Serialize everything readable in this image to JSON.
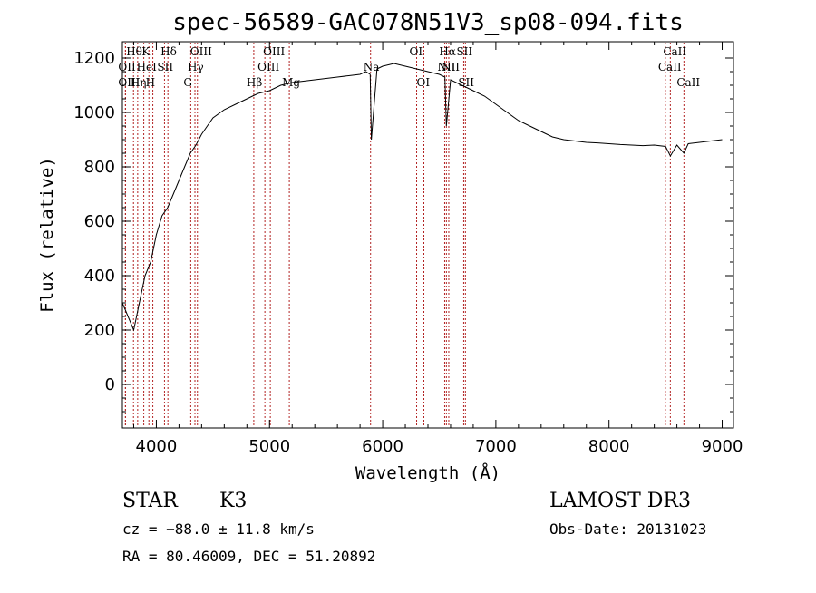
{
  "chart_data": {
    "type": "line",
    "title": "spec-56589-GAC078N51V3_sp08-094.fits",
    "xlabel": "Wavelength (Å)",
    "ylabel": "Flux (relative)",
    "xlim": [
      3700,
      9100
    ],
    "ylim": [
      -160,
      1260
    ],
    "x_ticks": [
      4000,
      5000,
      6000,
      7000,
      8000,
      9000
    ],
    "y_ticks": [
      0,
      200,
      400,
      600,
      800,
      1000,
      1200
    ],
    "series": [
      {
        "name": "flux",
        "x": [
          3700,
          3750,
          3800,
          3850,
          3900,
          3950,
          4000,
          4050,
          4100,
          4150,
          4200,
          4250,
          4300,
          4350,
          4400,
          4450,
          4500,
          4600,
          4700,
          4800,
          4850,
          4900,
          5000,
          5100,
          5200,
          5300,
          5400,
          5500,
          5600,
          5700,
          5800,
          5850,
          5890,
          5900,
          5950,
          6000,
          6100,
          6200,
          6300,
          6400,
          6500,
          6550,
          6563,
          6600,
          6700,
          6800,
          6900,
          7000,
          7100,
          7200,
          7300,
          7400,
          7500,
          7600,
          7700,
          7800,
          7900,
          8000,
          8100,
          8200,
          8300,
          8400,
          8500,
          8542,
          8600,
          8662,
          8700,
          8800,
          8900,
          9000
        ],
        "y": [
          300,
          250,
          200,
          300,
          400,
          450,
          550,
          620,
          650,
          700,
          750,
          800,
          850,
          880,
          920,
          950,
          980,
          1010,
          1030,
          1050,
          1060,
          1070,
          1080,
          1100,
          1110,
          1115,
          1120,
          1125,
          1130,
          1135,
          1140,
          1150,
          1140,
          900,
          1160,
          1170,
          1180,
          1170,
          1160,
          1150,
          1140,
          1130,
          950,
          1120,
          1100,
          1080,
          1060,
          1030,
          1000,
          970,
          950,
          930,
          910,
          900,
          895,
          890,
          888,
          885,
          882,
          880,
          878,
          880,
          875,
          840,
          880,
          850,
          885,
          890,
          895,
          900
        ]
      }
    ],
    "spectral_lines": [
      {
        "name": "Hθ",
        "wavelength": 3798,
        "row": 1
      },
      {
        "name": "OII",
        "wavelength": 3727,
        "row": 2
      },
      {
        "name": "OIII",
        "wavelength": 3727,
        "row": 3
      },
      {
        "name": "K",
        "wavelength": 3934,
        "row": 1
      },
      {
        "name": "HeI",
        "wavelength": 3889,
        "row": 2
      },
      {
        "name": "Hη",
        "wavelength": 3835,
        "row": 3
      },
      {
        "name": "Hδ",
        "wavelength": 4102,
        "row": 1
      },
      {
        "name": "SII",
        "wavelength": 4072,
        "row": 2
      },
      {
        "name": "H",
        "wavelength": 3969,
        "row": 3
      },
      {
        "name": "OIII",
        "wavelength": 4363,
        "row": 1
      },
      {
        "name": "Hγ",
        "wavelength": 4341,
        "row": 2
      },
      {
        "name": "G",
        "wavelength": 4304,
        "row": 3
      },
      {
        "name": "OIII",
        "wavelength": 5007,
        "row": 1
      },
      {
        "name": "OIII",
        "wavelength": 4959,
        "row": 2
      },
      {
        "name": "Hβ",
        "wavelength": 4861,
        "row": 3
      },
      {
        "name": "Mg",
        "wavelength": 5175,
        "row": 3
      },
      {
        "name": "Na",
        "wavelength": 5893,
        "row": 2
      },
      {
        "name": "OI",
        "wavelength": 6300,
        "row": 1
      },
      {
        "name": "OI",
        "wavelength": 6364,
        "row": 3
      },
      {
        "name": "Hα",
        "wavelength": 6563,
        "row": 1
      },
      {
        "name": "SII",
        "wavelength": 6716,
        "row": 1
      },
      {
        "name": "NII",
        "wavelength": 6548,
        "row": 2
      },
      {
        "name": "NII",
        "wavelength": 6584,
        "row": 2
      },
      {
        "name": "SII",
        "wavelength": 6731,
        "row": 3
      },
      {
        "name": "CaII",
        "wavelength": 8542,
        "row": 1
      },
      {
        "name": "CaII",
        "wavelength": 8498,
        "row": 2
      },
      {
        "name": "CaII",
        "wavelength": 8662,
        "row": 3
      }
    ],
    "grid": false
  },
  "info": {
    "object_class": "STAR",
    "subclass": "K3",
    "survey": "LAMOST DR3",
    "cz": "cz = −88.0 ± 11.8 km/s",
    "obs_date": "Obs-Date: 20131023",
    "radec": "RA =  80.46009, DEC =  51.20892"
  },
  "colors": {
    "line_marker": "#b22222",
    "spectrum": "#000000",
    "axes": "#000000"
  }
}
